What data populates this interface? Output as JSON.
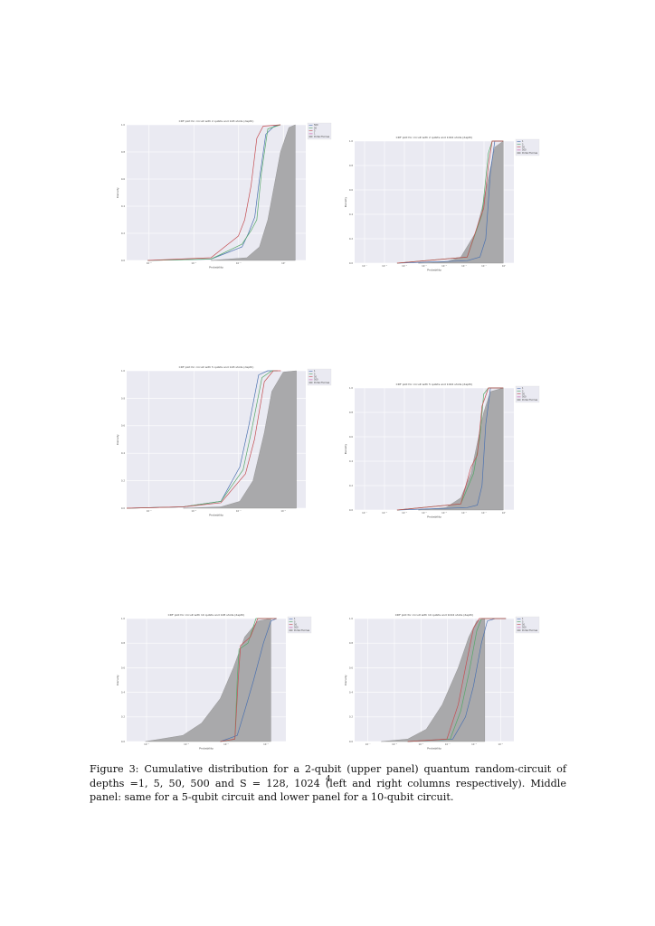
{
  "figure": {
    "caption": "Figure 3:  Cumulative distribution for a 2-qubit (upper panel) quantum random-circuit of depths =1, 5, 50, 500 and S = 128, 1024 (left and right columns respectively).  Middle panel:  same for a 5-qubit circuit and lower panel for a 10-qubit circuit.",
    "page_number": "4"
  },
  "chart_data": [
    {
      "type": "line",
      "title": "CDF plot for circuit with 2 qubits and 128 shots (depth)",
      "xlabel": "Probability",
      "ylabel": "Density",
      "x_scale": "log",
      "x_ticks": [
        "10⁻⁶",
        "10⁻⁴",
        "10⁻²",
        "10⁰"
      ],
      "y_ticks": [
        "0.0",
        "0.2",
        "0.4",
        "0.6",
        "0.8",
        "1.0"
      ],
      "ylim": [
        0,
        1
      ],
      "grid": true,
      "legend_placement": "right",
      "legend": [
        "500",
        "50",
        "5",
        "1",
        "Porter-Thomas"
      ],
      "series": [
        {
          "name": "500",
          "color": "#4c72b0",
          "x": [
            1e-07,
            0.0001,
            0.003,
            0.006,
            0.012,
            0.02,
            0.04,
            0.1,
            0.2
          ],
          "values": [
            0,
            0.01,
            0.1,
            0.2,
            0.32,
            0.6,
            0.93,
            0.99,
            1.0
          ]
        },
        {
          "name": "50",
          "color": "#55a868",
          "x": [
            1e-07,
            0.0001,
            0.003,
            0.008,
            0.015,
            0.025,
            0.05,
            0.2
          ],
          "values": [
            0,
            0.01,
            0.12,
            0.22,
            0.3,
            0.65,
            0.97,
            1.0
          ]
        },
        {
          "name": "5",
          "color": "#c44e52",
          "x": [
            1e-07,
            0.0001,
            0.002,
            0.004,
            0.008,
            0.015,
            0.03,
            0.2
          ],
          "values": [
            0,
            0.02,
            0.18,
            0.3,
            0.55,
            0.9,
            0.99,
            1.0
          ]
        },
        {
          "name": "Porter-Thomas",
          "color": "#8c8c8c",
          "x": [
            0.0001,
            0.005,
            0.02,
            0.05,
            0.1,
            0.2,
            0.5,
            1.0
          ],
          "values": [
            0,
            0.02,
            0.1,
            0.3,
            0.55,
            0.8,
            0.98,
            1.0
          ]
        }
      ]
    },
    {
      "type": "line",
      "title": "CDF plot for circuit with 2 qubits and 1024 shots (depth)",
      "xlabel": "Probability",
      "ylabel": "Density",
      "x_scale": "log",
      "x_ticks": [
        "10⁻⁷",
        "10⁻⁶",
        "10⁻⁵",
        "10⁻⁴",
        "10⁻³",
        "10⁻²",
        "10⁻¹",
        "10⁰"
      ],
      "y_ticks": [
        "0.0",
        "0.2",
        "0.4",
        "0.6",
        "0.8",
        "1.0"
      ],
      "ylim": [
        0,
        1
      ],
      "grid": true,
      "legend_placement": "right",
      "legend": [
        "1",
        "5",
        "50",
        "500",
        "Porter-Thomas"
      ],
      "series": [
        {
          "name": "1",
          "color": "#4c72b0",
          "x": [
            1e-05,
            0.02,
            0.08,
            0.15,
            0.25,
            0.4,
            1.0
          ],
          "values": [
            0,
            0.02,
            0.05,
            0.2,
            0.75,
            1.0,
            1.0
          ]
        },
        {
          "name": "5",
          "color": "#55a868",
          "x": [
            1e-05,
            0.02,
            0.1,
            0.2,
            0.3,
            1.0
          ],
          "values": [
            0,
            0.05,
            0.4,
            0.9,
            1.0,
            1.0
          ]
        },
        {
          "name": "50",
          "color": "#c44e52",
          "x": [
            1e-05,
            0.02,
            0.06,
            0.12,
            0.2,
            0.3,
            1.0
          ],
          "values": [
            0,
            0.05,
            0.3,
            0.45,
            0.8,
            1.0,
            1.0
          ]
        },
        {
          "name": "Porter-Thomas",
          "color": "#8c8c8c",
          "x": [
            0.0001,
            0.002,
            0.01,
            0.05,
            0.1,
            0.2,
            0.4,
            1.0
          ],
          "values": [
            0,
            0.01,
            0.05,
            0.25,
            0.45,
            0.7,
            0.95,
            1.0
          ]
        }
      ]
    },
    {
      "type": "line",
      "title": "CDF plot for circuit with 5 qubits and 128 shots (depth)",
      "xlabel": "Probability",
      "ylabel": "Density",
      "x_scale": "log",
      "x_ticks": [
        "10⁻⁸",
        "10⁻⁶",
        "10⁻⁴",
        "10⁻²"
      ],
      "y_ticks": [
        "0.0",
        "0.2",
        "0.4",
        "0.6",
        "0.8",
        "1.0"
      ],
      "ylim": [
        0,
        1
      ],
      "grid": true,
      "legend_placement": "right",
      "legend": [
        "1",
        "5",
        "50",
        "500",
        "Porter-Thomas"
      ],
      "series": [
        {
          "name": "1",
          "color": "#4c72b0",
          "x": [
            1e-09,
            1e-06,
            0.0001,
            0.001,
            0.003,
            0.01,
            0.03,
            0.1
          ],
          "values": [
            0,
            0.01,
            0.05,
            0.3,
            0.6,
            0.97,
            1.0,
            1.0
          ]
        },
        {
          "name": "5",
          "color": "#55a868",
          "x": [
            1e-09,
            1e-06,
            0.0001,
            0.0015,
            0.004,
            0.015,
            0.05,
            0.1
          ],
          "values": [
            0,
            0.01,
            0.05,
            0.28,
            0.55,
            0.95,
            1.0,
            1.0
          ]
        },
        {
          "name": "50",
          "color": "#c44e52",
          "x": [
            1e-09,
            1e-06,
            0.0001,
            0.002,
            0.006,
            0.02,
            0.06,
            0.15
          ],
          "values": [
            0,
            0.01,
            0.04,
            0.25,
            0.5,
            0.92,
            1.0,
            1.0
          ]
        },
        {
          "name": "Porter-Thomas",
          "color": "#8c8c8c",
          "x": [
            1e-06,
            0.0001,
            0.001,
            0.005,
            0.02,
            0.05,
            0.2,
            1.0
          ],
          "values": [
            0,
            0.01,
            0.05,
            0.2,
            0.55,
            0.85,
            0.99,
            1.0
          ]
        }
      ]
    },
    {
      "type": "line",
      "title": "CDF plot for circuit with 5 qubits and 1024 shots (depth)",
      "xlabel": "Probability",
      "ylabel": "Density",
      "x_scale": "log",
      "x_ticks": [
        "10⁻⁷",
        "10⁻⁶",
        "10⁻⁵",
        "10⁻⁴",
        "10⁻³",
        "10⁻²",
        "10⁻¹",
        "10⁰"
      ],
      "y_ticks": [
        "0.0",
        "0.2",
        "0.4",
        "0.6",
        "0.8",
        "1.0"
      ],
      "ylim": [
        0,
        1
      ],
      "grid": true,
      "legend_placement": "right",
      "legend": [
        "1",
        "5",
        "50",
        "500",
        "Porter-Thomas"
      ],
      "series": [
        {
          "name": "1",
          "color": "#4c72b0",
          "x": [
            1e-05,
            0.02,
            0.06,
            0.1,
            0.15,
            0.25,
            1.0
          ],
          "values": [
            0,
            0.02,
            0.04,
            0.2,
            0.7,
            1.0,
            1.0
          ]
        },
        {
          "name": "5",
          "color": "#55a868",
          "x": [
            1e-05,
            0.01,
            0.04,
            0.08,
            0.12,
            0.2,
            1.0
          ],
          "values": [
            0,
            0.05,
            0.3,
            0.6,
            0.95,
            1.0,
            1.0
          ]
        },
        {
          "name": "50",
          "color": "#c44e52",
          "x": [
            1e-05,
            0.01,
            0.03,
            0.06,
            0.1,
            0.2,
            1.0
          ],
          "values": [
            0,
            0.05,
            0.35,
            0.45,
            0.85,
            1.0,
            1.0
          ]
        },
        {
          "name": "Porter-Thomas",
          "color": "#8c8c8c",
          "x": [
            0.0001,
            0.002,
            0.01,
            0.03,
            0.06,
            0.12,
            0.25,
            1.0
          ],
          "values": [
            0,
            0.02,
            0.1,
            0.3,
            0.55,
            0.8,
            0.97,
            1.0
          ]
        }
      ]
    },
    {
      "type": "line",
      "title": "CDF plot for circuit with 10 qubits and 128 shots (depth)",
      "xlabel": "Probability",
      "ylabel": "Density",
      "x_scale": "log",
      "x_ticks": [
        "10⁻⁸",
        "10⁻⁶",
        "10⁻⁴",
        "10⁻²"
      ],
      "y_ticks": [
        "0.0",
        "0.2",
        "0.4",
        "0.6",
        "0.8",
        "1.0"
      ],
      "ylim": [
        0,
        1
      ],
      "grid": true,
      "legend_placement": "right",
      "legend": [
        "1",
        "5",
        "50",
        "500",
        "Porter-Thomas"
      ],
      "series": [
        {
          "name": "1",
          "color": "#4c72b0",
          "x": [
            0.0001,
            0.0008,
            0.002,
            0.006,
            0.02,
            0.05,
            0.1
          ],
          "values": [
            0,
            0.05,
            0.25,
            0.5,
            0.8,
            0.98,
            1.0
          ]
        },
        {
          "name": "5",
          "color": "#55a868",
          "x": [
            0.0001,
            0.0006,
            0.0008,
            0.001,
            0.003,
            0.008,
            0.1
          ],
          "values": [
            0,
            0.02,
            0.5,
            0.75,
            0.8,
            1.0,
            1.0
          ]
        },
        {
          "name": "50",
          "color": "#c44e52",
          "x": [
            0.0001,
            0.0006,
            0.0009,
            0.0012,
            0.004,
            0.01,
            0.1
          ],
          "values": [
            0,
            0.02,
            0.5,
            0.78,
            0.85,
            1.0,
            1.0
          ]
        },
        {
          "name": "Porter-Thomas",
          "color": "#8c8c8c",
          "x": [
            1e-08,
            1e-06,
            1e-05,
            0.0001,
            0.0005,
            0.002,
            0.01,
            0.05
          ],
          "values": [
            0,
            0.05,
            0.15,
            0.35,
            0.6,
            0.85,
            0.98,
            1.0
          ]
        }
      ]
    },
    {
      "type": "line",
      "title": "CDF plot for circuit with 10 qubits and 1024 shots (depth)",
      "xlabel": "Probability",
      "ylabel": "Density",
      "x_scale": "log",
      "x_ticks": [
        "10⁻⁷",
        "10⁻⁶",
        "10⁻⁵",
        "10⁻⁴",
        "10⁻³",
        "10⁻²"
      ],
      "y_ticks": [
        "0.0",
        "0.2",
        "0.4",
        "0.6",
        "0.8",
        "1.0"
      ],
      "ylim": [
        0,
        1
      ],
      "grid": true,
      "legend_placement": "right",
      "legend": [
        "1",
        "5",
        "50",
        "500",
        "Porter-Thomas"
      ],
      "series": [
        {
          "name": "1",
          "color": "#4c72b0",
          "x": [
            1e-05,
            0.0005,
            0.0015,
            0.003,
            0.006,
            0.01,
            0.02,
            0.05
          ],
          "values": [
            0,
            0.02,
            0.2,
            0.45,
            0.8,
            0.98,
            1.0,
            1.0
          ]
        },
        {
          "name": "5",
          "color": "#55a868",
          "x": [
            1e-05,
            0.0004,
            0.001,
            0.002,
            0.004,
            0.006,
            0.05
          ],
          "values": [
            0,
            0.02,
            0.25,
            0.55,
            0.9,
            1.0,
            1.0
          ]
        },
        {
          "name": "50",
          "color": "#c44e52",
          "x": [
            1e-05,
            0.0003,
            0.0008,
            0.0015,
            0.003,
            0.005,
            0.05
          ],
          "values": [
            0,
            0.02,
            0.3,
            0.6,
            0.92,
            1.0,
            1.0
          ]
        },
        {
          "name": "Porter-Thomas",
          "color": "#8c8c8c",
          "x": [
            1e-06,
            1e-05,
            5e-05,
            0.0002,
            0.0008,
            0.002,
            0.004,
            0.008
          ],
          "values": [
            0,
            0.02,
            0.1,
            0.3,
            0.6,
            0.85,
            0.98,
            1.0
          ]
        }
      ]
    }
  ]
}
